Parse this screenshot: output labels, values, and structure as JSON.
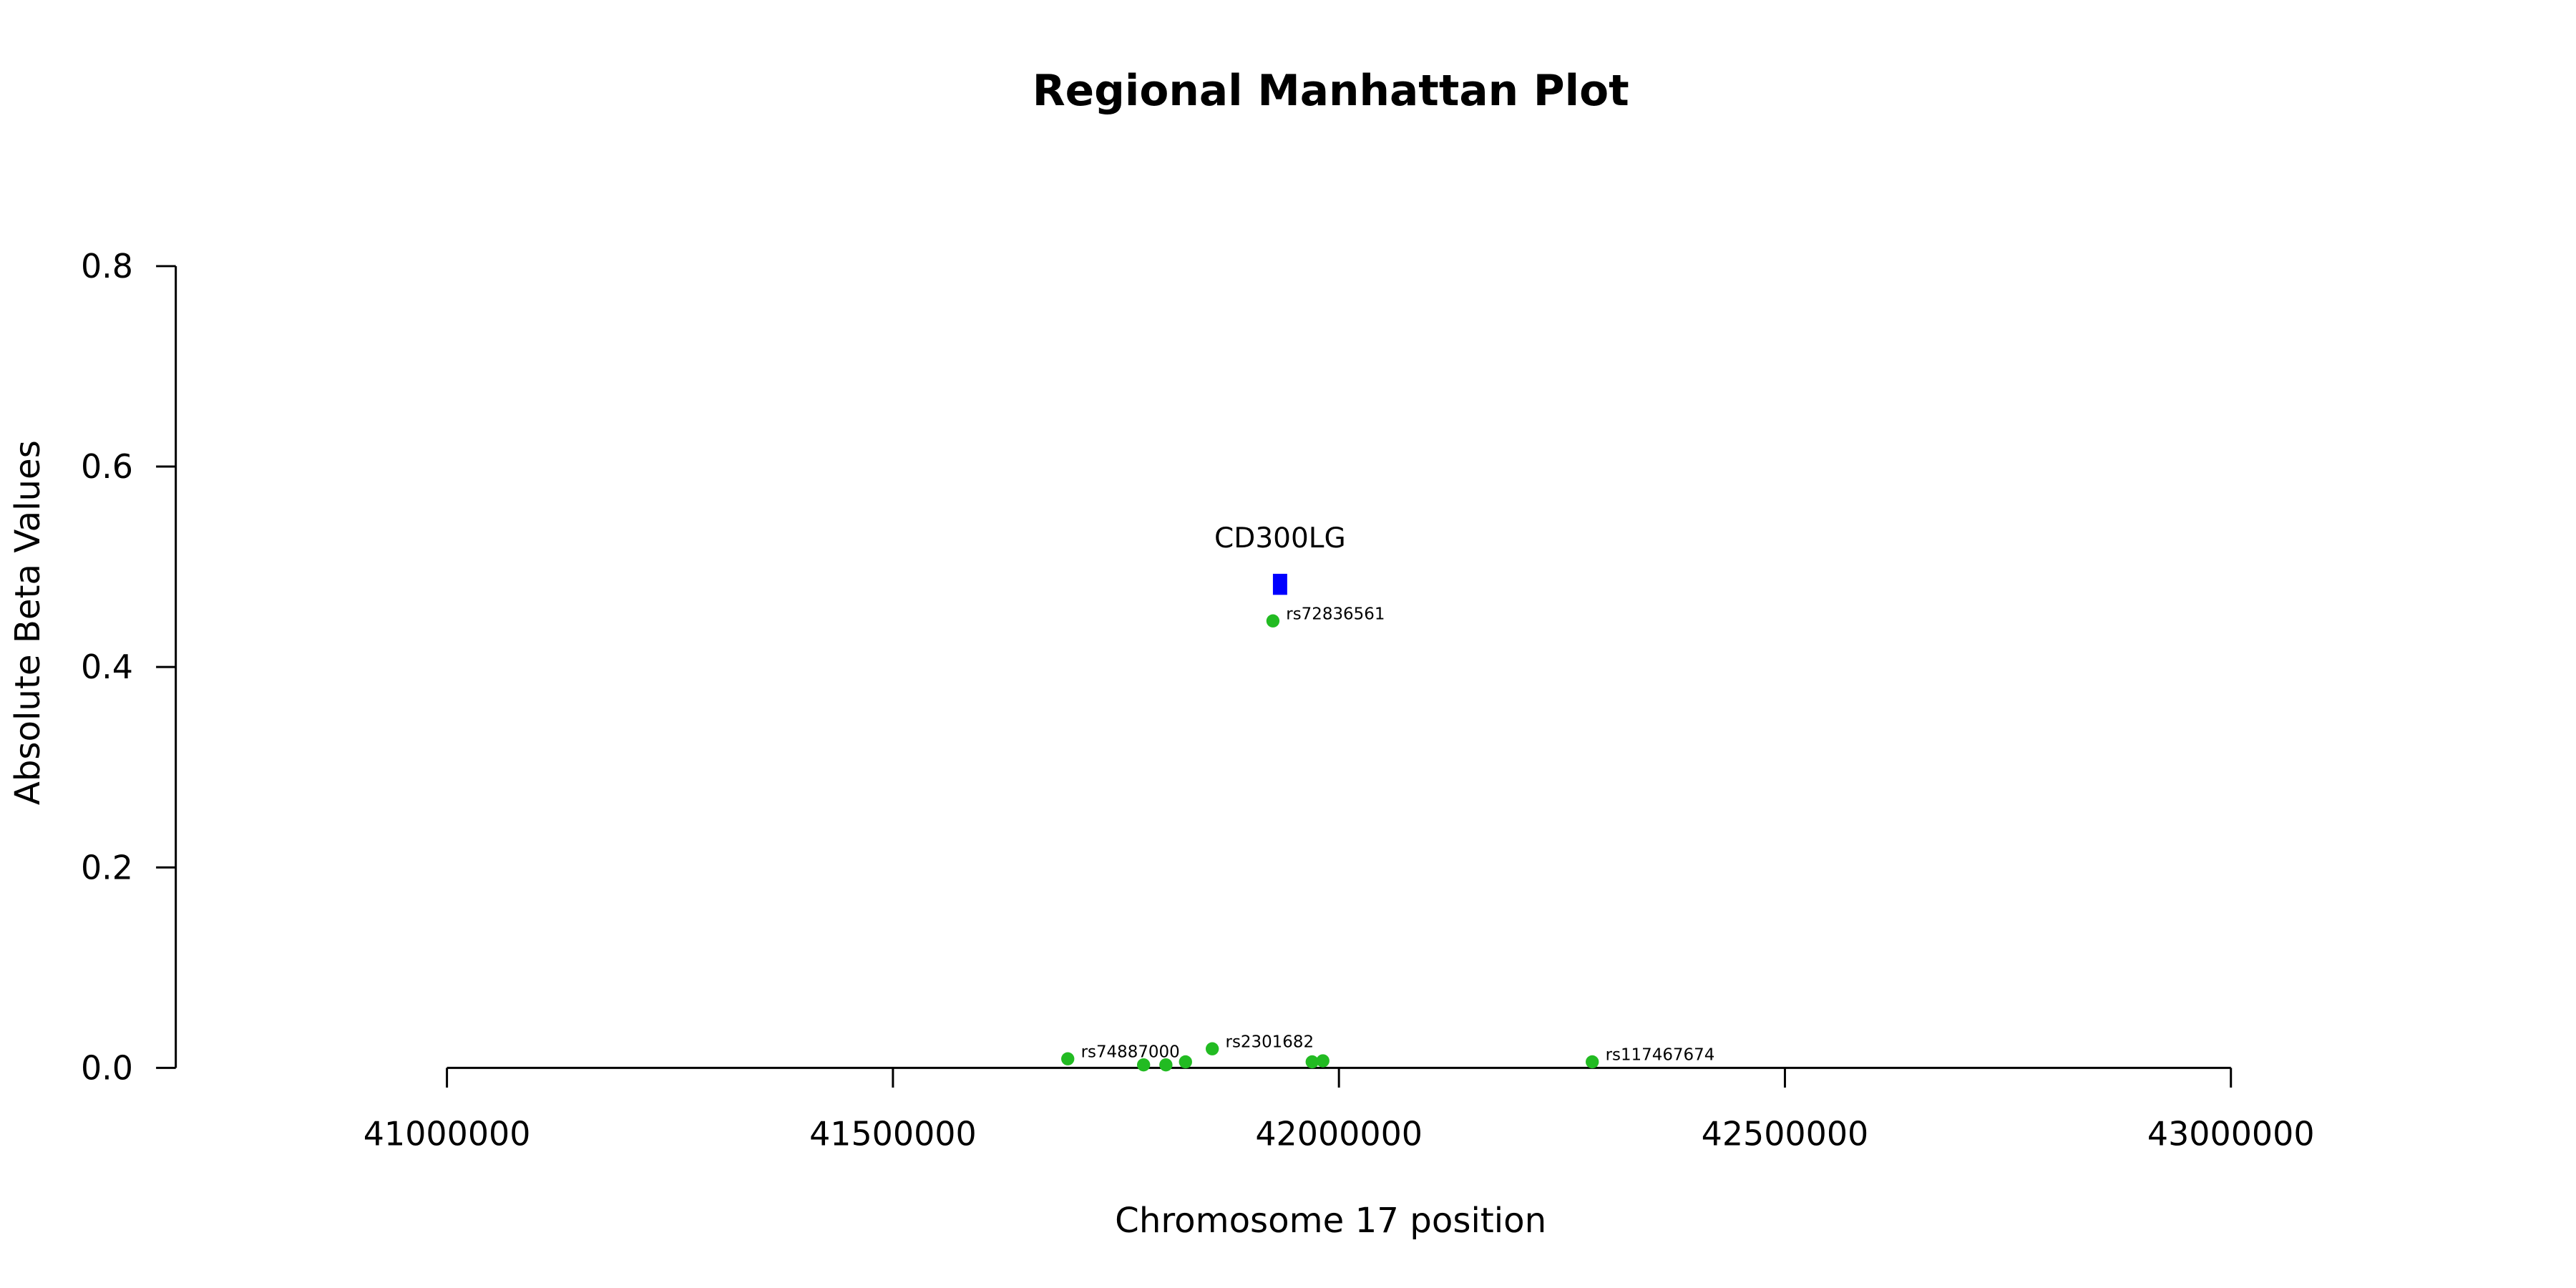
{
  "chart_data": {
    "type": "scatter",
    "title": "Regional Manhattan Plot",
    "xlabel": "Chromosome 17 position",
    "ylabel": "Absolute Beta Values",
    "x": [
      41696000,
      41781000,
      41806000,
      41828000,
      41858000,
      41926000,
      41970000,
      41982000,
      42284000
    ],
    "values": [
      0.009,
      0.003,
      0.003,
      0.006,
      0.019,
      0.446,
      0.006,
      0.007,
      0.006
    ],
    "point_labels": [
      "rs74887000",
      null,
      null,
      null,
      "rs2301682",
      "rs72836561",
      null,
      null,
      "rs117467674"
    ],
    "color": "#22bb22",
    "genes": [
      {
        "name": "CD300LG",
        "start": 41926000,
        "end": 41942000,
        "ymin": 0.472,
        "ymax": 0.493,
        "color": "#0000ff"
      }
    ],
    "xlim": [
      40696000,
      43304000
    ],
    "ylim": [
      0,
      0.8
    ],
    "xticks": [
      41000000,
      41500000,
      42000000,
      42500000,
      43000000
    ],
    "yticks": [
      {
        "value": 0,
        "label": "0.0"
      },
      {
        "value": 0.2,
        "label": "0.2"
      },
      {
        "value": 0.4,
        "label": "0.4"
      },
      {
        "value": 0.6,
        "label": "0.6"
      },
      {
        "value": 0.8,
        "label": "0.8"
      }
    ]
  }
}
